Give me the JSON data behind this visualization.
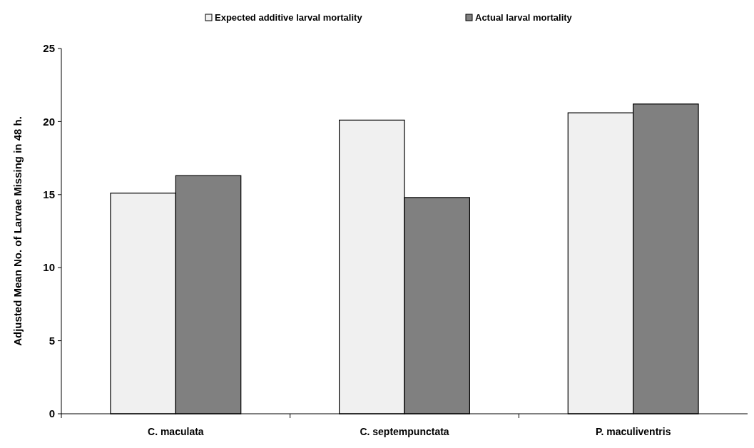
{
  "chart_data": {
    "type": "bar",
    "categories": [
      "C. maculata",
      "C. septempunctata",
      "P. maculiventris"
    ],
    "ylabel": "Adjusted Mean No. of Larvae Missing in 48 h.",
    "series": [
      {
        "name": "Expected additive larval mortality",
        "color": "#f0f0f0",
        "values": [
          15.1,
          20.1,
          20.6
        ]
      },
      {
        "name": "Actual larval mortality",
        "color": "#808080",
        "values": [
          16.3,
          14.8,
          21.2
        ]
      }
    ],
    "ylim": [
      0,
      25
    ],
    "yticks": [
      0,
      5,
      10,
      15,
      20,
      25
    ],
    "grid": false,
    "legend": "top"
  }
}
